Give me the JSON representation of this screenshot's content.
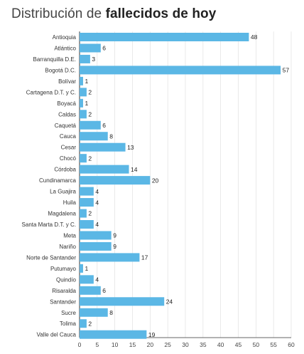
{
  "title": {
    "prefix": "Distribución de",
    "bold": "fallecidos de hoy"
  },
  "colors": {
    "bar": "#5bb7e5",
    "axis": "#333333",
    "grid": "#dddddd"
  },
  "chart_data": {
    "type": "bar",
    "orientation": "horizontal",
    "categories": [
      "Antioquia",
      "Atlántico",
      "Barranquilla D.E.",
      "Bogotá D.C.",
      "Bolívar",
      "Cartagena D.T. y C.",
      "Boyacá",
      "Caldas",
      "Caquetá",
      "Cauca",
      "Cesar",
      "Chocó",
      "Córdoba",
      "Cundinamarca",
      "La Guajira",
      "Huila",
      "Magdalena",
      "Santa Marta D.T. y C.",
      "Meta",
      "Nariño",
      "Norte de Santander",
      "Putumayo",
      "Quindío",
      "Risaralda",
      "Santander",
      "Sucre",
      "Tolima",
      "Valle del Cauca"
    ],
    "values": [
      48,
      6,
      3,
      57,
      1,
      2,
      1,
      2,
      6,
      8,
      13,
      2,
      14,
      20,
      4,
      4,
      2,
      4,
      9,
      9,
      17,
      1,
      4,
      6,
      24,
      8,
      2,
      19
    ],
    "xlim": [
      0,
      60
    ],
    "xticks": [
      0,
      5,
      10,
      15,
      20,
      25,
      30,
      35,
      40,
      45,
      50,
      55,
      60
    ],
    "title": "Distribución de fallecidos de hoy",
    "data_labels": true,
    "grid": true
  }
}
